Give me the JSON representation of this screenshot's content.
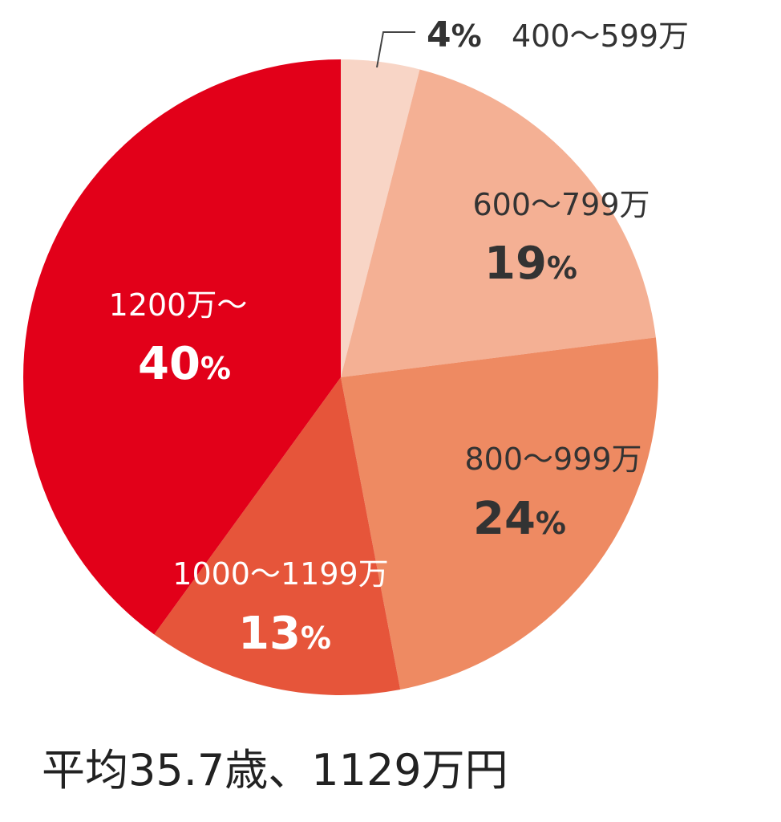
{
  "chart_data": {
    "type": "pie",
    "start_angle_deg": 0,
    "direction": "clockwise",
    "slices": [
      {
        "label": "400〜599万",
        "value": 4,
        "pct_text": "4",
        "pct_sign": "%",
        "color": "#f8d5c6",
        "label_color": "#333333"
      },
      {
        "label": "600〜799万",
        "value": 19,
        "pct_text": "19",
        "pct_sign": "%",
        "color": "#f4b094",
        "label_color": "#333333"
      },
      {
        "label": "800〜999万",
        "value": 24,
        "pct_text": "24",
        "pct_sign": "%",
        "color": "#ee8a62",
        "label_color": "#333333"
      },
      {
        "label": "1000〜1199万",
        "value": 13,
        "pct_text": "13",
        "pct_sign": "%",
        "color": "#e6553a",
        "label_color": "#ffffff"
      },
      {
        "label": "1200万〜",
        "value": 40,
        "pct_text": "40",
        "pct_sign": "%",
        "color": "#e20019",
        "label_color": "#ffffff"
      }
    ]
  },
  "caption": "平均35.7歳、1129万円"
}
